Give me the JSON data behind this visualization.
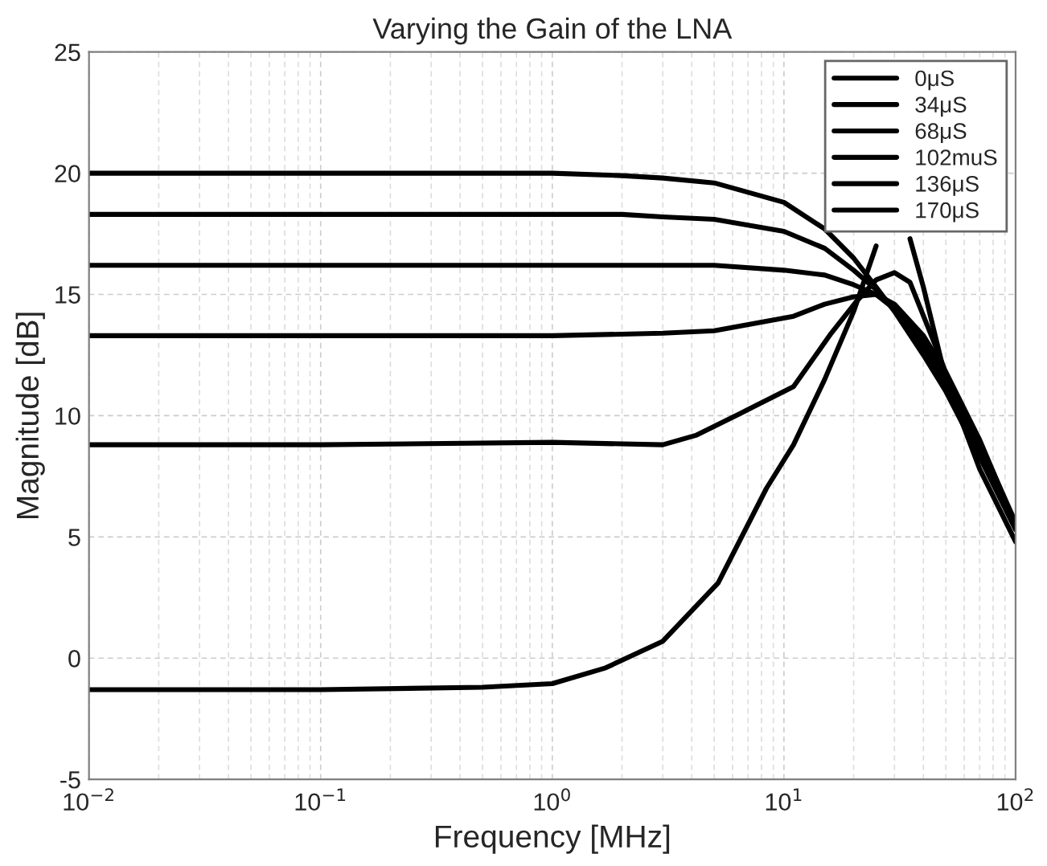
{
  "chart_data": {
    "type": "line",
    "title": "Varying the Gain of the LNA",
    "xlabel": "Frequency [MHz]",
    "ylabel": "Magnitude [dB]",
    "log": "x",
    "grid": true,
    "legend": "top right",
    "line_style": "solid",
    "marker": "none",
    "xlim": [
      0.01,
      100
    ],
    "xticks": [
      {
        "value": 0.01,
        "label": "10$^{−2}$"
      },
      {
        "value": 0.1,
        "label": "10$^{−1}$"
      },
      {
        "value": 1,
        "label": "10$^{0}$"
      },
      {
        "value": 10,
        "label": "10$^{1}$"
      },
      {
        "value": 100,
        "label": "10$^{2}$"
      }
    ],
    "ylim": [
      -5,
      25
    ],
    "yticks": [
      -5,
      0,
      5,
      10,
      15,
      20,
      25
    ],
    "series": [
      {
        "name": "0μS",
        "color": "#000000",
        "x": [
          0.01,
          0.1,
          1,
          2,
          3,
          5,
          10,
          15,
          20,
          25,
          30,
          40,
          50,
          70,
          100
        ],
        "values": [
          20.0,
          20.0,
          20.0,
          19.9,
          19.8,
          19.6,
          18.8,
          17.7,
          16.5,
          15.3,
          14.3,
          12.5,
          11.0,
          8.3,
          5.3
        ]
      },
      {
        "name": "34μS",
        "color": "#000000",
        "x": [
          0.01,
          0.1,
          1,
          2,
          3,
          5,
          10,
          15,
          20,
          25,
          30,
          40,
          50,
          70,
          100
        ],
        "values": [
          18.3,
          18.3,
          18.3,
          18.3,
          18.2,
          18.1,
          17.6,
          16.9,
          16.0,
          15.2,
          14.4,
          12.8,
          11.3,
          8.6,
          5.5
        ]
      },
      {
        "name": "68μS",
        "color": "#000000",
        "x": [
          0.01,
          0.1,
          1,
          2,
          3,
          5,
          10,
          15,
          20,
          25,
          30,
          40,
          50,
          70,
          100
        ],
        "values": [
          16.2,
          16.2,
          16.2,
          16.2,
          16.2,
          16.2,
          16.0,
          15.8,
          15.4,
          15.0,
          14.4,
          13.0,
          11.6,
          8.9,
          5.6
        ]
      },
      {
        "name": "102muS",
        "color": "#000000",
        "x": [
          0.01,
          0.1,
          1,
          3,
          5,
          11,
          15,
          20,
          25,
          30,
          40,
          50,
          70,
          100
        ],
        "values": [
          13.3,
          13.3,
          13.3,
          13.4,
          13.5,
          14.1,
          14.6,
          14.9,
          15.0,
          14.6,
          13.3,
          11.8,
          9.0,
          5.5
        ]
      },
      {
        "name": "136μS",
        "color": "#000000",
        "x": [
          0.01,
          0.1,
          1,
          3,
          4.2,
          6.5,
          11,
          16,
          20.5,
          25,
          30,
          35,
          45,
          60,
          80,
          100
        ],
        "values": [
          8.8,
          8.8,
          8.9,
          8.8,
          9.2,
          10.1,
          11.2,
          13.4,
          14.7,
          15.6,
          15.9,
          15.5,
          12.9,
          9.8,
          7.2,
          5.5
        ]
      },
      {
        "name": "170μS",
        "color": "#000000",
        "x": [
          0.01,
          0.1,
          0.5,
          1,
          1.7,
          3,
          5.2,
          8.4,
          11,
          15,
          20,
          25,
          29,
          35,
          40,
          50,
          70,
          100
        ],
        "values": [
          -1.3,
          -1.3,
          -1.2,
          -1.05,
          -0.4,
          0.7,
          3.1,
          7.0,
          8.8,
          11.5,
          14.3,
          17.0,
          null,
          17.3,
          15.3,
          11.5,
          7.8,
          4.8
        ]
      }
    ]
  }
}
